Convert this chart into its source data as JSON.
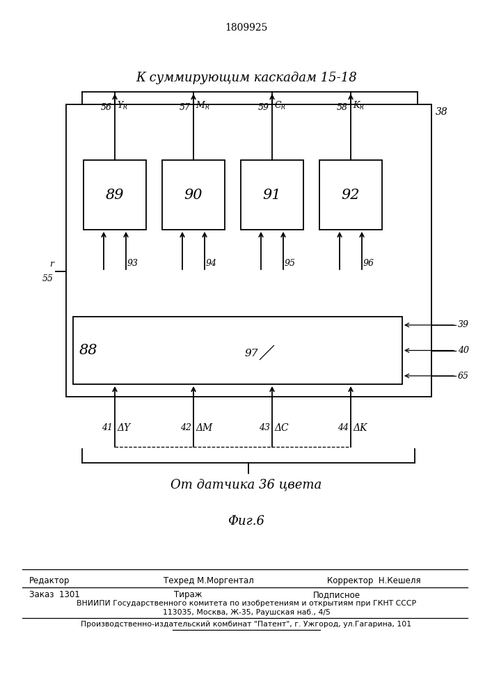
{
  "patent_number": "1809925",
  "title_top": "К суммирующим каскадам 15-18",
  "title_bottom_brace": "От датчика 36 цвета",
  "fig_label": "Фиг.6",
  "bg_color": "#ffffff",
  "box_main_label": "88",
  "box_main_sub": "97",
  "box_labels": [
    "89",
    "90",
    "91",
    "92"
  ],
  "output_labels_top": [
    "56",
    "57",
    "59",
    "58"
  ],
  "output_sub_labels": [
    "Y",
    "M",
    "C",
    "K"
  ],
  "feedback_labels": [
    "93",
    "94",
    "95",
    "96"
  ],
  "input_labels": [
    "41",
    "42",
    "43",
    "44"
  ],
  "input_deltas": [
    "ΔY",
    "ΔM",
    "ΔC",
    "ΔK"
  ],
  "side_label_r": "r",
  "side_label_55": "55",
  "side_labels_right": [
    "39",
    "40",
    "65"
  ],
  "outer_box_label": "38",
  "footer_line1_col1": "Редактор",
  "footer_line1_col2": "Техред М.Моргентал",
  "footer_line1_col3": "Корректор  Н.Кешеля",
  "footer_line2_col1": "Заказ  1301",
  "footer_line2_col2": "Тираж",
  "footer_line2_col3": "Подписное",
  "footer_vniip": "ВНИИПИ Государственного комитета по изобретениям и открытиям при ГКНТ СССР",
  "footer_address": "113035, Москва, Ж-35, Раушская наб., 4/5",
  "footer_plant": "Производственно-издательский комбинат \"Патент\", г. Ужгород, ул.Гагарина, 101"
}
